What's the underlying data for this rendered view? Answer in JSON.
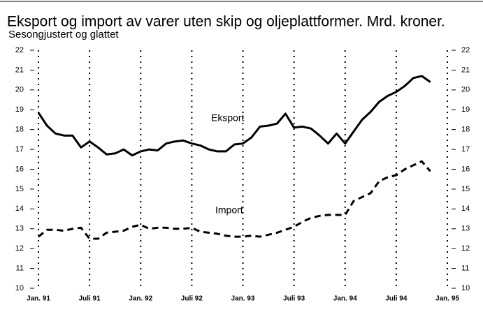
{
  "chart_data": {
    "type": "line",
    "title": "Eksport og import av varer uten skip og oljeplattformer. Mrd. kroner.",
    "subtitle": "Sesongjustert og glattet",
    "annotations": [
      "Eksport",
      "Import"
    ],
    "categories": [
      "Jan. 91",
      null,
      null,
      null,
      null,
      null,
      "Juli 91",
      null,
      null,
      null,
      null,
      null,
      "Jan. 92",
      null,
      null,
      null,
      null,
      null,
      "Juli 92",
      null,
      null,
      null,
      null,
      null,
      "Jan. 93",
      null,
      null,
      null,
      null,
      null,
      "Juli 93",
      null,
      null,
      null,
      null,
      null,
      "Jan. 94",
      null,
      null,
      null,
      null,
      null,
      "Juli 94",
      null,
      null,
      null,
      null,
      null,
      "Jan. 95"
    ],
    "series": [
      {
        "name": "Eksport",
        "color": "#000000",
        "dash": false,
        "values": [
          18.85,
          18.2,
          17.8,
          17.7,
          17.7,
          17.1,
          17.4,
          17.1,
          16.75,
          16.8,
          17.0,
          16.7,
          16.9,
          17.0,
          16.95,
          17.3,
          17.4,
          17.45,
          17.3,
          17.2,
          17.0,
          16.9,
          16.9,
          17.25,
          17.3,
          17.6,
          18.15,
          18.2,
          18.3,
          18.8,
          18.1,
          18.15,
          18.05,
          17.7,
          17.3,
          17.8,
          17.3,
          17.9,
          18.5,
          18.9,
          19.4,
          19.7,
          19.9,
          20.2,
          20.6,
          20.7,
          20.4,
          null,
          null
        ]
      },
      {
        "name": "Import",
        "color": "#000000",
        "dash": true,
        "values": [
          12.6,
          12.95,
          12.95,
          12.9,
          13.0,
          13.05,
          12.5,
          12.5,
          12.8,
          12.85,
          12.9,
          13.1,
          13.2,
          13.0,
          13.05,
          13.05,
          13.0,
          13.0,
          13.05,
          12.85,
          12.8,
          12.75,
          12.65,
          12.6,
          12.6,
          12.65,
          12.6,
          12.7,
          12.8,
          12.95,
          13.1,
          13.35,
          13.55,
          13.65,
          13.7,
          13.7,
          13.7,
          14.4,
          14.6,
          14.8,
          15.4,
          15.6,
          15.7,
          16.0,
          16.2,
          16.4,
          15.9,
          null,
          null
        ]
      }
    ],
    "ylim": [
      10,
      22
    ],
    "yticks": [
      10,
      11,
      12,
      13,
      14,
      15,
      16,
      17,
      18,
      19,
      20,
      21,
      22
    ],
    "grid": true
  }
}
